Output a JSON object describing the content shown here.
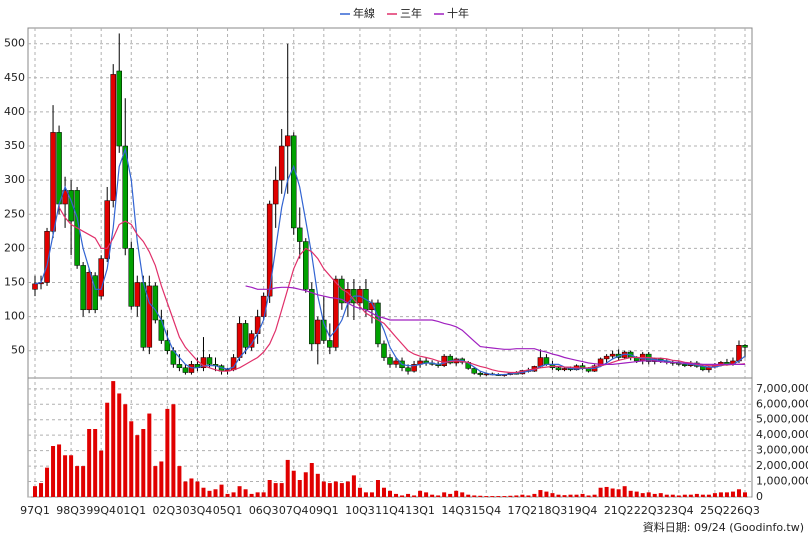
{
  "chart_data": [
    {
      "type": "candlestick",
      "categories": [
        "97Q1",
        null,
        null,
        null,
        null,
        null,
        "98Q3",
        null,
        null,
        null,
        null,
        "99Q4",
        null,
        null,
        null,
        null,
        "01Q1",
        null,
        null,
        null,
        null,
        null,
        "02Q3",
        null,
        null,
        null,
        null,
        "03Q4",
        null,
        null,
        null,
        null,
        "05Q1",
        null,
        null,
        null,
        null,
        null,
        "06Q3",
        null,
        null,
        null,
        null,
        "07Q4",
        null,
        null,
        null,
        null,
        "09Q1",
        null,
        null,
        null,
        null,
        null,
        "10Q3",
        null,
        null,
        null,
        null,
        "11Q4",
        null,
        null,
        null,
        null,
        "13Q1",
        null,
        null,
        null,
        null,
        null,
        "14Q3",
        null,
        null,
        null,
        null,
        "15Q4",
        null,
        null,
        null,
        null,
        null,
        "17Q2",
        null,
        null,
        null,
        null,
        "18Q3",
        null,
        null,
        null,
        null,
        "19Q4",
        null,
        null,
        null,
        null,
        null,
        "21Q2",
        null,
        null,
        null,
        null,
        "22Q3",
        null,
        null,
        null,
        null,
        "23Q4",
        null,
        null,
        null,
        null,
        null,
        "25Q2",
        null,
        null,
        null,
        null,
        "26Q3"
      ],
      "open": [
        140,
        148,
        150,
        225,
        370,
        265,
        285,
        285,
        175,
        110,
        160,
        130,
        185,
        270,
        460,
        350,
        200,
        115,
        150,
        55,
        145,
        95,
        65,
        50,
        30,
        25,
        18,
        30,
        25,
        40,
        30,
        28,
        20,
        22,
        40,
        90,
        55,
        75,
        100,
        130,
        265,
        300,
        350,
        365,
        230,
        210,
        140,
        60,
        95,
        65,
        55,
        155,
        120,
        140,
        120,
        140,
        110,
        120,
        60,
        40,
        30,
        35,
        25,
        20,
        30,
        35,
        32,
        30,
        28,
        42,
        32,
        38,
        33,
        24,
        17,
        15,
        16,
        15,
        14,
        15,
        17,
        16,
        21,
        20,
        27,
        40,
        30,
        25,
        22,
        24,
        22,
        28,
        24,
        20,
        28,
        38,
        42,
        45,
        40,
        48,
        40,
        35,
        45,
        34,
        38,
        35,
        33,
        32,
        30,
        28,
        32,
        27,
        22,
        26,
        30,
        33,
        30,
        35,
        58
      ],
      "high": [
        160,
        160,
        230,
        410,
        380,
        305,
        300,
        290,
        180,
        170,
        165,
        190,
        290,
        470,
        515,
        420,
        210,
        160,
        160,
        160,
        150,
        110,
        80,
        55,
        45,
        30,
        35,
        40,
        70,
        45,
        40,
        30,
        25,
        45,
        100,
        95,
        80,
        110,
        135,
        270,
        320,
        375,
        500,
        370,
        260,
        215,
        150,
        100,
        130,
        90,
        160,
        160,
        150,
        155,
        145,
        155,
        125,
        125,
        65,
        45,
        40,
        40,
        30,
        35,
        40,
        40,
        36,
        34,
        45,
        45,
        40,
        40,
        35,
        26,
        20,
        18,
        18,
        17,
        16,
        18,
        20,
        22,
        25,
        28,
        52,
        45,
        35,
        27,
        26,
        27,
        30,
        32,
        26,
        30,
        40,
        45,
        50,
        52,
        50,
        50,
        42,
        48,
        48,
        40,
        40,
        38,
        36,
        35,
        33,
        35,
        35,
        30,
        28,
        32,
        35,
        38,
        40,
        65,
        60
      ],
      "low": [
        130,
        140,
        145,
        215,
        250,
        230,
        190,
        170,
        100,
        105,
        105,
        125,
        180,
        260,
        340,
        190,
        110,
        100,
        50,
        45,
        90,
        60,
        45,
        25,
        20,
        15,
        15,
        20,
        20,
        25,
        20,
        15,
        15,
        20,
        35,
        45,
        50,
        60,
        95,
        120,
        230,
        280,
        280,
        220,
        185,
        135,
        50,
        30,
        60,
        45,
        50,
        110,
        100,
        95,
        110,
        100,
        90,
        55,
        35,
        25,
        25,
        20,
        15,
        18,
        25,
        28,
        28,
        25,
        26,
        30,
        28,
        30,
        22,
        15,
        12,
        13,
        14,
        13,
        12,
        14,
        15,
        15,
        18,
        19,
        25,
        28,
        22,
        20,
        20,
        20,
        21,
        22,
        18,
        19,
        26,
        30,
        38,
        35,
        38,
        36,
        32,
        30,
        30,
        30,
        32,
        30,
        28,
        28,
        26,
        26,
        25,
        20,
        18,
        24,
        27,
        28,
        28,
        32,
        40
      ],
      "close": [
        148,
        150,
        225,
        370,
        265,
        285,
        240,
        175,
        110,
        165,
        110,
        185,
        270,
        455,
        350,
        200,
        115,
        150,
        55,
        145,
        95,
        65,
        50,
        30,
        25,
        18,
        30,
        25,
        40,
        30,
        28,
        20,
        22,
        40,
        90,
        55,
        75,
        100,
        130,
        265,
        300,
        350,
        365,
        230,
        210,
        140,
        60,
        95,
        65,
        55,
        155,
        120,
        140,
        120,
        140,
        110,
        120,
        60,
        40,
        30,
        35,
        25,
        20,
        30,
        35,
        32,
        30,
        28,
        42,
        32,
        38,
        33,
        24,
        17,
        15,
        16,
        15,
        14,
        15,
        17,
        16,
        21,
        20,
        27,
        40,
        30,
        25,
        22,
        24,
        22,
        28,
        24,
        20,
        28,
        38,
        42,
        45,
        40,
        48,
        40,
        35,
        45,
        34,
        38,
        35,
        33,
        32,
        30,
        28,
        32,
        27,
        22,
        26,
        30,
        33,
        30,
        35,
        58,
        55
      ],
      "up_color": "#e00000",
      "down_color": "#00a000",
      "series": [
        {
          "name": "年線",
          "color": "#3264d2",
          "values": [
            148,
            150,
            175,
            220,
            265,
            290,
            270,
            245,
            200,
            170,
            140,
            140,
            170,
            230,
            320,
            345,
            300,
            210,
            150,
            120,
            110,
            95,
            70,
            50,
            40,
            30,
            25,
            25,
            28,
            28,
            28,
            25,
            23,
            26,
            40,
            50,
            60,
            75,
            95,
            140,
            200,
            260,
            300,
            320,
            290,
            240,
            190,
            130,
            90,
            70,
            80,
            95,
            120,
            130,
            130,
            125,
            120,
            100,
            80,
            55,
            40,
            30,
            28,
            28,
            30,
            32,
            32,
            30,
            32,
            35,
            36,
            36,
            32,
            26,
            20,
            17,
            15,
            15,
            15,
            16,
            17,
            18,
            20,
            22,
            27,
            30,
            30,
            30,
            26,
            24,
            23,
            24,
            24,
            24,
            27,
            32,
            38,
            42,
            45,
            44,
            40,
            38,
            38,
            37,
            36,
            35,
            33,
            33,
            31,
            30,
            29,
            27,
            26,
            26,
            28,
            30,
            30,
            35,
            42
          ]
        },
        {
          "name": "三年",
          "color": "#e0306a",
          "values": [
            null,
            null,
            null,
            null,
            260,
            245,
            235,
            230,
            225,
            220,
            215,
            200,
            200,
            215,
            235,
            240,
            235,
            220,
            210,
            195,
            175,
            145,
            120,
            95,
            70,
            55,
            45,
            35,
            28,
            25,
            22,
            20,
            20,
            22,
            25,
            30,
            35,
            40,
            48,
            60,
            80,
            110,
            140,
            170,
            190,
            200,
            195,
            185,
            170,
            160,
            150,
            140,
            135,
            125,
            115,
            105,
            100,
            95,
            90,
            80,
            70,
            60,
            50,
            45,
            42,
            40,
            38,
            35,
            33,
            34,
            35,
            34,
            33,
            30,
            27,
            25,
            22,
            20,
            19,
            18,
            18,
            20,
            22,
            23,
            25,
            26,
            27,
            27,
            26,
            26,
            25,
            25,
            25,
            27,
            28,
            30,
            33,
            36,
            38,
            40,
            40,
            40,
            40,
            39,
            39,
            38,
            36,
            35,
            33,
            32,
            30,
            29,
            28,
            28,
            29,
            29,
            30,
            30,
            31
          ]
        },
        {
          "name": "十年",
          "color": "#a020c0",
          "values": [
            null,
            null,
            null,
            null,
            null,
            null,
            null,
            null,
            null,
            null,
            null,
            null,
            null,
            null,
            null,
            null,
            null,
            null,
            null,
            null,
            null,
            null,
            null,
            null,
            null,
            null,
            null,
            null,
            null,
            null,
            null,
            null,
            null,
            null,
            null,
            145,
            143,
            140,
            140,
            140,
            142,
            143,
            143,
            142,
            140,
            138,
            135,
            132,
            130,
            128,
            127,
            125,
            120,
            115,
            112,
            110,
            105,
            100,
            98,
            95,
            95,
            95,
            95,
            95,
            95,
            95,
            95,
            93,
            90,
            88,
            85,
            80,
            72,
            64,
            56,
            55,
            54,
            53,
            52,
            52,
            53,
            53,
            53,
            53,
            50,
            48,
            45,
            43,
            40,
            38,
            36,
            34,
            32,
            31,
            30,
            30,
            30,
            31,
            32,
            33,
            34,
            35,
            35,
            35,
            34,
            33,
            33,
            32,
            32,
            31,
            31,
            30,
            30,
            30,
            30,
            30,
            30,
            30,
            30
          ]
        }
      ],
      "ylim": [
        10,
        523
      ],
      "yticks": [
        50,
        100,
        150,
        200,
        250,
        300,
        350,
        400,
        450,
        500
      ],
      "grid": true,
      "legend": "top",
      "source_note": "資料日期: 09/24 (Goodinfo.tw)"
    },
    {
      "type": "bar",
      "color": "#e00000",
      "values": [
        700000,
        900000,
        1900000,
        3300000,
        3400000,
        2700000,
        2700000,
        2000000,
        2000000,
        4400000,
        4400000,
        3000000,
        6100000,
        7500000,
        6700000,
        6000000,
        4900000,
        4000000,
        4400000,
        5400000,
        2000000,
        2300000,
        5700000,
        6000000,
        2000000,
        1000000,
        1200000,
        1000000,
        600000,
        400000,
        500000,
        800000,
        200000,
        300000,
        700000,
        500000,
        200000,
        300000,
        300000,
        1100000,
        900000,
        900000,
        2400000,
        1700000,
        1100000,
        1600000,
        2200000,
        1500000,
        1000000,
        900000,
        1000000,
        900000,
        1000000,
        1400000,
        600000,
        300000,
        300000,
        1100000,
        600000,
        400000,
        200000,
        100000,
        200000,
        100000,
        400000,
        300000,
        150000,
        100000,
        300000,
        200000,
        400000,
        300000,
        150000,
        100000,
        80000,
        60000,
        60000,
        60000,
        60000,
        80000,
        100000,
        150000,
        100000,
        200000,
        450000,
        350000,
        250000,
        150000,
        120000,
        150000,
        150000,
        200000,
        100000,
        150000,
        600000,
        650000,
        550000,
        500000,
        700000,
        400000,
        350000,
        250000,
        300000,
        200000,
        250000,
        150000,
        150000,
        100000,
        150000,
        150000,
        200000,
        150000,
        150000,
        250000,
        300000,
        300000,
        350000,
        500000,
        300000
      ],
      "ylim": [
        0,
        7700000
      ],
      "yticks": [
        0,
        {
          "value": 1000000,
          "label": "1,000,000"
        },
        {
          "value": 2000000,
          "label": "2,000,000"
        },
        {
          "value": 3000000,
          "label": "3,000,000"
        },
        {
          "value": 4000000,
          "label": "4,000,000"
        },
        {
          "value": 5000000,
          "label": "5,000,000"
        },
        {
          "value": 6000000,
          "label": "6,000,000"
        },
        {
          "value": 7000000,
          "label": "7,000,000"
        }
      ]
    }
  ]
}
